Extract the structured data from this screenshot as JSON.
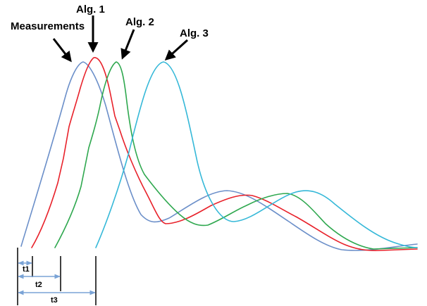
{
  "labels": {
    "measurements": "Measurements",
    "alg1": "Alg. 1",
    "alg2": "Alg. 2",
    "alg3": "Alg. 3"
  },
  "delays": {
    "t1": "t1",
    "t2": "t2",
    "t3": "t3"
  },
  "colors": {
    "measurements": "#6b8fc9",
    "alg1": "#e8212a",
    "alg2": "#2fa84f",
    "alg3": "#35b8d8",
    "delay_arrows": "#7aa3d6",
    "annotation": "#000000"
  },
  "icons": {
    "pointer": "arrow-icon",
    "delay": "double-arrow-icon"
  }
}
